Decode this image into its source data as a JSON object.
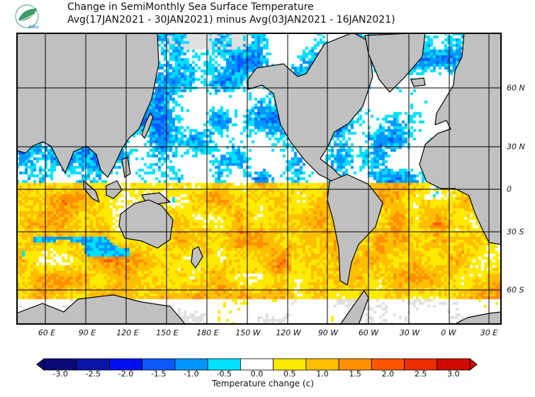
{
  "header": {
    "logo_text": "aau",
    "title": "Change in SemiMonthly Sea Surface Temperature",
    "subtitle": "Avg(17JAN2021 - 30JAN2021) minus Avg(03JAN2021 - 16JAN2021)"
  },
  "map": {
    "longitude_labels": [
      "60 E",
      "90 E",
      "120 E",
      "150 E",
      "180 E",
      "150 W",
      "120 W",
      "90 W",
      "60 W",
      "30 W",
      "0 W",
      "30 E"
    ],
    "latitude_labels": [
      "60 N",
      "30 N",
      "0",
      "30 S",
      "60 S"
    ],
    "land_color": "#c0c0c0",
    "no_data_color": "#e0e0e0"
  },
  "colorbar": {
    "title": "Temperature change  (c)",
    "labels": [
      "-3.0",
      "-2.5",
      "-2.0",
      "-1.5",
      "-1.0",
      "-0.5",
      "0.0",
      "0.5",
      "1.0",
      "1.5",
      "2.0",
      "2.5",
      "3.0"
    ],
    "colors": [
      "#0a0a78",
      "#0a14a8",
      "#0010f0",
      "#0a5aff",
      "#0096ff",
      "#00e0ff",
      "#ffffff",
      "#ffea00",
      "#ffbe00",
      "#ff9000",
      "#ff5500",
      "#ee2a00",
      "#d00a00"
    ]
  }
}
